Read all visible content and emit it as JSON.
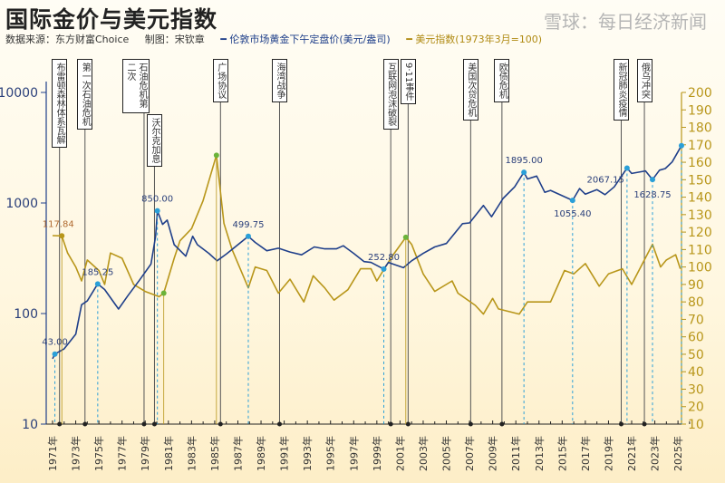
{
  "title": "国际金价与美元指数",
  "source": "数据来源：东方财富Choice",
  "author": "制图：宋钦章",
  "watermark": "雪球：每日经济新闻",
  "colors": {
    "gold": "#1f3f8a",
    "dxy": "#b8961a",
    "marker_gold": "#2a9fd8",
    "marker_dxy": "#6bb33a",
    "event_line": "#555555"
  },
  "chart_data": {
    "type": "line",
    "grid": false,
    "legend_position": "top",
    "x_tick_labels": [
      "1971年",
      "1973年",
      "1975年",
      "1977年",
      "1979年",
      "1981年",
      "1983年",
      "1985年",
      "1987年",
      "1989年",
      "1991年",
      "1993年",
      "1995年",
      "1997年",
      "1999年",
      "2001年",
      "2003年",
      "2005年",
      "2007年",
      "2009年",
      "2011年",
      "2013年",
      "2015年",
      "2017年",
      "2019年",
      "2021年",
      "2023年",
      "2025年"
    ],
    "x_range": [
      1971,
      2025.5
    ],
    "y_left": {
      "scale": "log",
      "range": [
        10,
        10000
      ],
      "ticks": [
        "10",
        "100",
        "1000",
        "10000"
      ]
    },
    "y_right": {
      "scale": "linear",
      "range": [
        10,
        200
      ],
      "ticks": [
        "10",
        "20",
        "30",
        "40",
        "50",
        "60",
        "70",
        "80",
        "90",
        "100",
        "110",
        "120",
        "130",
        "140",
        "150",
        "160",
        "170",
        "180",
        "190",
        "200"
      ]
    },
    "series": [
      {
        "name": "伦敦市场黄金下午定盘价(美元/盎司)",
        "axis": "left",
        "points": [
          [
            1971,
            39
          ],
          [
            1971.2,
            43
          ],
          [
            1972,
            48
          ],
          [
            1973,
            65
          ],
          [
            1973.5,
            120
          ],
          [
            1974,
            130
          ],
          [
            1974.9,
            185.25
          ],
          [
            1975.5,
            165
          ],
          [
            1976.7,
            110
          ],
          [
            1977.5,
            145
          ],
          [
            1978.5,
            200
          ],
          [
            1979.5,
            280
          ],
          [
            1979.9,
            500
          ],
          [
            1980.05,
            850
          ],
          [
            1980.5,
            640
          ],
          [
            1980.9,
            700
          ],
          [
            1981.5,
            420
          ],
          [
            1982.5,
            330
          ],
          [
            1983.1,
            500
          ],
          [
            1983.5,
            420
          ],
          [
            1984.5,
            350
          ],
          [
            1985.2,
            300
          ],
          [
            1986,
            345
          ],
          [
            1987.9,
            499.75
          ],
          [
            1988.5,
            440
          ],
          [
            1989.5,
            370
          ],
          [
            1990.5,
            390
          ],
          [
            1991.5,
            360
          ],
          [
            1992.5,
            340
          ],
          [
            1993.6,
            400
          ],
          [
            1994.5,
            385
          ],
          [
            1995.5,
            385
          ],
          [
            1996.1,
            410
          ],
          [
            1997,
            350
          ],
          [
            1997.9,
            295
          ],
          [
            1998.5,
            290
          ],
          [
            1999.6,
            252.8
          ],
          [
            2000,
            290
          ],
          [
            2001.3,
            260
          ],
          [
            2002,
            300
          ],
          [
            2003,
            350
          ],
          [
            2004,
            400
          ],
          [
            2005,
            430
          ],
          [
            2006.4,
            650
          ],
          [
            2007,
            660
          ],
          [
            2008.2,
            950
          ],
          [
            2008.9,
            750
          ],
          [
            2009.9,
            1100
          ],
          [
            2010.9,
            1400
          ],
          [
            2011.7,
            1895
          ],
          [
            2012,
            1650
          ],
          [
            2012.8,
            1750
          ],
          [
            2013.5,
            1250
          ],
          [
            2014,
            1300
          ],
          [
            2015.9,
            1055.4
          ],
          [
            2016.5,
            1350
          ],
          [
            2017,
            1200
          ],
          [
            2018,
            1320
          ],
          [
            2018.7,
            1190
          ],
          [
            2019.5,
            1400
          ],
          [
            2020.6,
            2067.15
          ],
          [
            2021,
            1850
          ],
          [
            2022.2,
            1950
          ],
          [
            2022.8,
            1628.75
          ],
          [
            2023.4,
            1980
          ],
          [
            2023.9,
            2050
          ],
          [
            2024.5,
            2350
          ],
          [
            2025.3,
            3300
          ]
        ]
      },
      {
        "name": "美元指数(1973年3月=100)",
        "axis": "right",
        "points": [
          [
            1971,
            118
          ],
          [
            1971.8,
            117.84
          ],
          [
            1972.3,
            108
          ],
          [
            1973,
            100
          ],
          [
            1973.5,
            92
          ],
          [
            1974,
            104
          ],
          [
            1975,
            98
          ],
          [
            1975.5,
            90
          ],
          [
            1976,
            108
          ],
          [
            1977,
            105
          ],
          [
            1978,
            90
          ],
          [
            1979,
            86
          ],
          [
            1980.2,
            83
          ],
          [
            1980.6,
            85
          ],
          [
            1981.5,
            105
          ],
          [
            1982,
            115
          ],
          [
            1983,
            122
          ],
          [
            1984,
            138
          ],
          [
            1985.15,
            164
          ],
          [
            1985.8,
            125
          ],
          [
            1986.5,
            110
          ],
          [
            1987.9,
            88
          ],
          [
            1988.5,
            100
          ],
          [
            1989.5,
            98
          ],
          [
            1990.5,
            85
          ],
          [
            1991.5,
            93
          ],
          [
            1992.7,
            80
          ],
          [
            1993.5,
            95
          ],
          [
            1994.5,
            88
          ],
          [
            1995.3,
            81
          ],
          [
            1996.5,
            87
          ],
          [
            1997.6,
            99
          ],
          [
            1998.5,
            99
          ],
          [
            1999,
            92
          ],
          [
            2000.3,
            106
          ],
          [
            2001.5,
            117
          ],
          [
            2002,
            113
          ],
          [
            2003,
            96
          ],
          [
            2004,
            86
          ],
          [
            2005.5,
            92
          ],
          [
            2006,
            85
          ],
          [
            2007.5,
            78
          ],
          [
            2008.2,
            73
          ],
          [
            2009,
            82
          ],
          [
            2009.5,
            76
          ],
          [
            2011.3,
            73
          ],
          [
            2012,
            80
          ],
          [
            2013,
            80
          ],
          [
            2014,
            80
          ],
          [
            2015.2,
            98
          ],
          [
            2016,
            96
          ],
          [
            2017,
            102
          ],
          [
            2018.2,
            89
          ],
          [
            2019,
            96
          ],
          [
            2020.2,
            99
          ],
          [
            2021,
            90
          ],
          [
            2022.8,
            113
          ],
          [
            2023.5,
            100
          ],
          [
            2024,
            104
          ],
          [
            2024.8,
            107
          ],
          [
            2025.2,
            99
          ]
        ]
      }
    ],
    "annotations_gold": [
      {
        "x": 1971.2,
        "y": 43,
        "label": "43.00"
      },
      {
        "x": 1974.9,
        "y": 185.25,
        "label": "185.25"
      },
      {
        "x": 1980.05,
        "y": 850,
        "label": "850.00"
      },
      {
        "x": 1987.9,
        "y": 499.75,
        "label": "499.75"
      },
      {
        "x": 1999.6,
        "y": 252.8,
        "label": "252.80"
      },
      {
        "x": 2011.7,
        "y": 1895,
        "label": "1895.00"
      },
      {
        "x": 2015.9,
        "y": 1055.4,
        "label": "1055.40"
      },
      {
        "x": 2020.6,
        "y": 2067.15,
        "label": "2067.15"
      },
      {
        "x": 2022.8,
        "y": 1628.75,
        "label": "1628.75"
      },
      {
        "x": 2025.3,
        "y": 3300,
        "label": ""
      }
    ],
    "annotations_dxy": [
      {
        "x": 1971.8,
        "y": 117.84,
        "label": "117.84"
      },
      {
        "x": 1980.6,
        "y": 85,
        "label": ""
      },
      {
        "x": 1985.15,
        "y": 164,
        "label": ""
      },
      {
        "x": 2001.5,
        "y": 117,
        "label": ""
      }
    ],
    "events": [
      {
        "x": 1971.6,
        "label": "布雷顿森林体系瓦解"
      },
      {
        "x": 1973.8,
        "label": "第一次石油危机"
      },
      {
        "x": 1978.9,
        "label": "石油危机第二次"
      },
      {
        "x": 1979.8,
        "label": "沃尔克加息"
      },
      {
        "x": 1985.5,
        "label": "广场协议"
      },
      {
        "x": 1990.6,
        "label": "海湾战争"
      },
      {
        "x": 2000.2,
        "label": "互联网泡沫破裂"
      },
      {
        "x": 2001.7,
        "label": "9·11事件"
      },
      {
        "x": 2007.1,
        "label": "美国次贷危机"
      },
      {
        "x": 2009.8,
        "label": "欧债危机"
      },
      {
        "x": 2020.1,
        "label": "新冠肺炎疫情"
      },
      {
        "x": 2022.1,
        "label": "俄乌冲突"
      }
    ]
  }
}
